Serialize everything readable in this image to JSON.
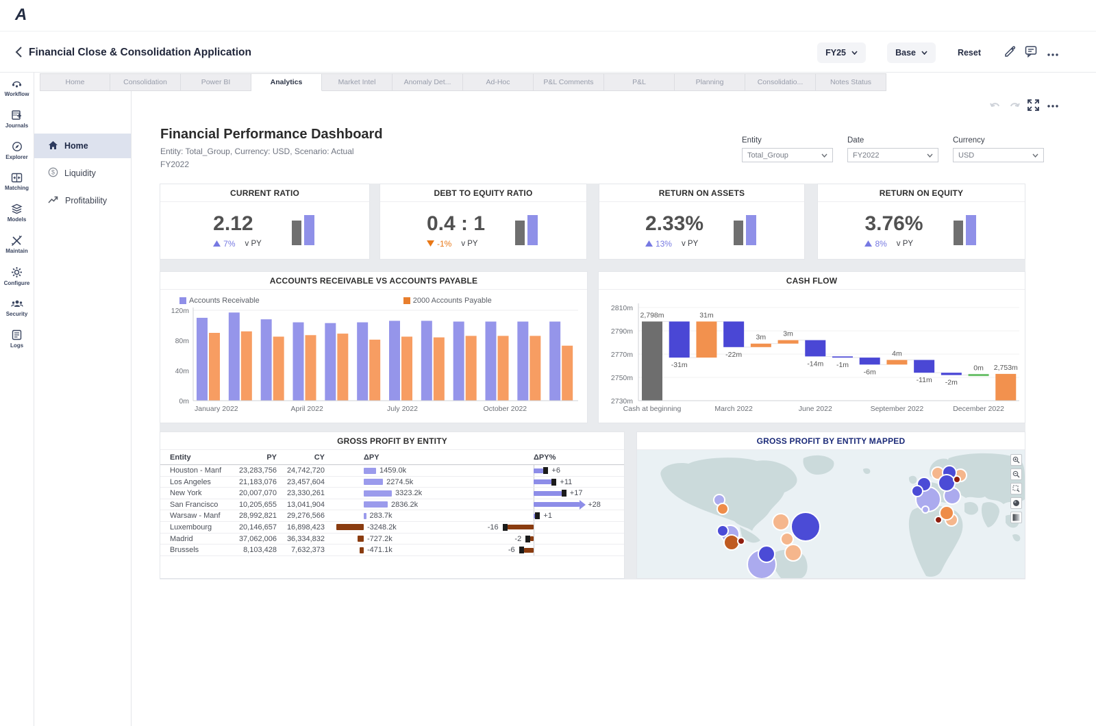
{
  "app": {
    "logo": "A"
  },
  "header": {
    "title": "Financial Close & Consolidation Application",
    "fy_label": "FY25",
    "base_label": "Base",
    "reset_label": "Reset"
  },
  "tabs": {
    "active": "Analytics",
    "items": [
      "Home",
      "Consolidation",
      "Power BI",
      "Analytics",
      "Market Intel",
      "Anomaly Det...",
      "Ad-Hoc",
      "P&L Comments",
      "P&L",
      "Planning",
      "Consolidatio...",
      "Notes Status"
    ]
  },
  "rail": {
    "items": [
      {
        "label": "Workflow",
        "icon": "workflow-icon"
      },
      {
        "label": "Journals",
        "icon": "journals-icon"
      },
      {
        "label": "Explorer",
        "icon": "explorer-icon"
      },
      {
        "label": "Matching",
        "icon": "matching-icon"
      },
      {
        "label": "Models",
        "icon": "models-icon"
      },
      {
        "label": "Maintain",
        "icon": "maintain-icon"
      },
      {
        "label": "Configure",
        "icon": "configure-icon"
      },
      {
        "label": "Security",
        "icon": "security-icon"
      },
      {
        "label": "Logs",
        "icon": "logs-icon"
      }
    ]
  },
  "subnav": {
    "active": "Home",
    "items": [
      {
        "label": "Home",
        "icon": "home-icon"
      },
      {
        "label": "Liquidity",
        "icon": "liquidity-icon"
      },
      {
        "label": "Profitability",
        "icon": "profitability-icon"
      }
    ]
  },
  "dashboard": {
    "title": "Financial Performance Dashboard",
    "subtitle": "Entity: Total_Group, Currency: USD, Scenario: Actual",
    "subtitle2": "FY2022"
  },
  "filters": [
    {
      "label": "Entity",
      "value": "Total_Group"
    },
    {
      "label": "Date",
      "value": "FY2022"
    },
    {
      "label": "Currency",
      "value": "USD"
    }
  ],
  "kpis": [
    {
      "title": "CURRENT RATIO",
      "value": "2.12",
      "delta": "7%",
      "direction": "up",
      "vs": "v PY"
    },
    {
      "title": "DEBT TO EQUITY RATIO",
      "value": "0.4 : 1",
      "delta": "-1%",
      "direction": "down",
      "vs": "v PY"
    },
    {
      "title": "RETURN ON ASSETS",
      "value": "2.33%",
      "delta": "13%",
      "direction": "up",
      "vs": "v PY"
    },
    {
      "title": "RETURN ON EQUITY",
      "value": "3.76%",
      "delta": "8%",
      "direction": "up",
      "vs": "v PY"
    }
  ],
  "kpi_colors": {
    "up": "#7679e2",
    "down": "#e87716",
    "bar_gray": "#6f6f6f",
    "bar_purple": "#8f90e8"
  },
  "chart_data": [
    {
      "type": "bar",
      "title": "ACCOUNTS RECEIVABLE VS ACCOUNTS PAYABLE",
      "categories": [
        "January 2022",
        "February 2022",
        "March 2022",
        "April 2022",
        "May 2022",
        "June 2022",
        "July 2022",
        "August 2022",
        "September 2022",
        "October 2022",
        "November 2022",
        "December 2022"
      ],
      "x_tick_labels": [
        "January 2022",
        "April 2022",
        "July 2022",
        "October 2022"
      ],
      "x_tick_indices": [
        0,
        3,
        6,
        9
      ],
      "series": [
        {
          "name": "Accounts Receivable",
          "color": "#9595ea",
          "swatch": "#8f8fe8",
          "values": [
            110,
            117,
            108,
            104,
            103,
            104,
            106,
            106,
            105,
            105,
            105,
            105
          ]
        },
        {
          "name": "2000 Accounts Payable",
          "color": "#f79d62",
          "swatch": "#e87e2d",
          "values": [
            90,
            92,
            85,
            87,
            89,
            81,
            85,
            84,
            86,
            86,
            86,
            73
          ]
        }
      ],
      "ylim": [
        0,
        120
      ],
      "ytick_values": [
        0,
        40,
        80,
        120
      ],
      "ytick_labels": [
        "0m",
        "40m",
        "80m",
        "120m"
      ]
    },
    {
      "type": "waterfall",
      "title": "CASH FLOW",
      "bars": [
        {
          "label": "2,798m",
          "value": 2798,
          "kind": "total",
          "color": "#6e6e6e"
        },
        {
          "label": "-31m",
          "value": -31,
          "kind": "delta"
        },
        {
          "label": "31m",
          "value": 31,
          "kind": "delta"
        },
        {
          "label": "-22m",
          "value": -22,
          "kind": "delta"
        },
        {
          "label": "3m",
          "value": 3,
          "kind": "delta"
        },
        {
          "label": "3m",
          "value": 3,
          "kind": "delta"
        },
        {
          "label": "-14m",
          "value": -14,
          "kind": "delta"
        },
        {
          "label": "-1m",
          "value": -1,
          "kind": "delta"
        },
        {
          "label": "-6m",
          "value": -6,
          "kind": "delta"
        },
        {
          "label": "4m",
          "value": 4,
          "kind": "delta"
        },
        {
          "label": "-11m",
          "value": -11,
          "kind": "delta"
        },
        {
          "label": "-2m",
          "value": -2,
          "kind": "delta"
        },
        {
          "label": "0m",
          "value": 0,
          "kind": "delta"
        },
        {
          "label": "2,753m",
          "value": 2753,
          "kind": "total",
          "color": "#f2914e"
        }
      ],
      "ylim": [
        2730,
        2810
      ],
      "ytick_values": [
        2810,
        2790,
        2770,
        2750,
        2730
      ],
      "ytick_labels": [
        "2810m",
        "2790m",
        "2770m",
        "2750m",
        "2730m"
      ],
      "x_ticks": [
        {
          "index": 0,
          "label": "Cash at beginning"
        },
        {
          "index": 3,
          "label": "March 2022"
        },
        {
          "index": 6,
          "label": "June 2022"
        },
        {
          "index": 9,
          "label": "September 2022"
        },
        {
          "index": 12,
          "label": "December 2022"
        }
      ],
      "colors": {
        "negative": "#4a47d5",
        "positive": "#f2914e",
        "zero": "#6abf69"
      }
    },
    {
      "type": "table",
      "title": "GROSS PROFIT BY ENTITY",
      "columns": [
        "Entity",
        "PY",
        "CY",
        "ΔPY",
        "ΔPY%"
      ],
      "rows": [
        {
          "entity": "Houston - Manf",
          "py": "23,283,756",
          "cy": "24,742,720",
          "dpy": 1459.0,
          "dpy_label": "1459.0k",
          "dpct": 6,
          "dpct_label": "+6"
        },
        {
          "entity": "Los Angeles",
          "py": "21,183,076",
          "cy": "23,457,604",
          "dpy": 2274.5,
          "dpy_label": "2274.5k",
          "dpct": 11,
          "dpct_label": "+11"
        },
        {
          "entity": "New York",
          "py": "20,007,070",
          "cy": "23,330,261",
          "dpy": 3323.2,
          "dpy_label": "3323.2k",
          "dpct": 17,
          "dpct_label": "+17"
        },
        {
          "entity": "San Francisco",
          "py": "10,205,655",
          "cy": "13,041,904",
          "dpy": 2836.2,
          "dpy_label": "2836.2k",
          "dpct": 28,
          "dpct_label": "+28"
        },
        {
          "entity": "Warsaw - Manf",
          "py": "28,992,821",
          "cy": "29,276,566",
          "dpy": 283.7,
          "dpy_label": "283.7k",
          "dpct": 1,
          "dpct_label": "+1"
        },
        {
          "entity": "Luxembourg",
          "py": "20,146,657",
          "cy": "16,898,423",
          "dpy": -3248.2,
          "dpy_label": "-3248.2k",
          "dpct": -16,
          "dpct_label": "-16"
        },
        {
          "entity": "Madrid",
          "py": "37,062,006",
          "cy": "36,334,832",
          "dpy": -727.2,
          "dpy_label": "-727.2k",
          "dpct": -2,
          "dpct_label": "-2"
        },
        {
          "entity": "Brussels",
          "py": "8,103,428",
          "cy": "7,632,373",
          "dpy": -471.1,
          "dpy_label": "-471.1k",
          "dpct": -6,
          "dpct_label": "-6"
        }
      ],
      "bar_colors": {
        "positive": "#9b9bec",
        "negative": "#8a3c10",
        "cap": "#1b1b1b"
      }
    },
    {
      "type": "bubble-map",
      "title": "GROSS PROFIT BY ENTITY MAPPED",
      "palette": {
        "bl": "#4b4bd6",
        "lp": "#abaaee",
        "or": "#ee8c49",
        "lor": "#f5b68c",
        "dor": "#bf5b21",
        "dr": "#8f1d0e"
      },
      "bubbles": [
        [
          182,
          167,
          21,
          "lp"
        ],
        [
          136,
          123,
          13,
          "lp"
        ],
        [
          120,
          73,
          8,
          "lp"
        ],
        [
          228,
          150,
          12,
          "lor"
        ],
        [
          210,
          105,
          12,
          "lor"
        ],
        [
          219,
          130,
          9,
          "lor"
        ],
        [
          125,
          86,
          8,
          "or"
        ],
        [
          246,
          112,
          21,
          "bl"
        ],
        [
          189,
          152,
          12,
          "bl"
        ],
        [
          125,
          118,
          8,
          "bl"
        ],
        [
          138,
          135,
          11,
          "dor"
        ],
        [
          152,
          133,
          5,
          "dr"
        ],
        [
          425,
          72,
          18,
          "lp"
        ],
        [
          460,
          67,
          12,
          "lp"
        ],
        [
          421,
          87,
          5,
          "lp"
        ],
        [
          439,
          34,
          9,
          "lor"
        ],
        [
          472,
          37,
          9,
          "lor"
        ],
        [
          459,
          102,
          9,
          "lor"
        ],
        [
          452,
          92,
          10,
          "or"
        ],
        [
          456,
          33,
          10,
          "bl"
        ],
        [
          452,
          48,
          12,
          "bl"
        ],
        [
          419,
          50,
          10,
          "bl"
        ],
        [
          409,
          60,
          8,
          "bl"
        ],
        [
          467,
          43,
          5,
          "dr"
        ],
        [
          440,
          102,
          5,
          "dr"
        ]
      ]
    }
  ]
}
